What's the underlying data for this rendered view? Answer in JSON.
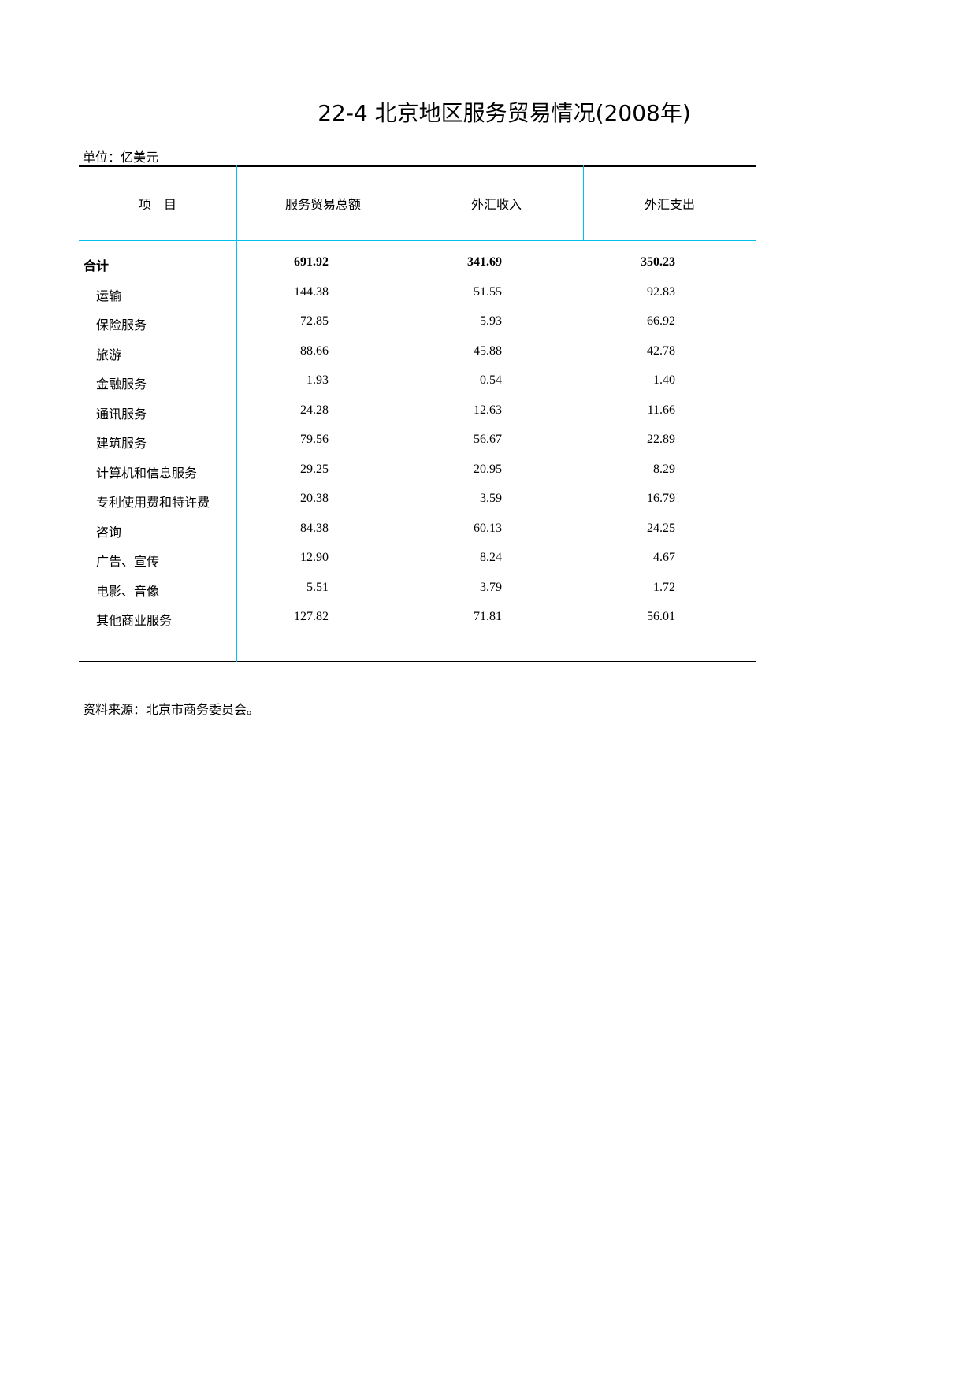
{
  "title": "22-4  北京地区服务贸易情况(2008年)",
  "unit": "单位：亿美元",
  "headers": [
    "项　目",
    "服务贸易总额",
    "外汇收入",
    "外汇支出"
  ],
  "colors": {
    "grid_accent": "#00c0f0"
  },
  "total": {
    "label": "合计",
    "values": [
      "691.92",
      "341.69",
      "350.23"
    ]
  },
  "rows": [
    {
      "label": "运输",
      "values": [
        "144.38",
        "51.55",
        "92.83"
      ]
    },
    {
      "label": "保险服务",
      "values": [
        "72.85",
        "5.93",
        "66.92"
      ]
    },
    {
      "label": "旅游",
      "values": [
        "88.66",
        "45.88",
        "42.78"
      ]
    },
    {
      "label": "金融服务",
      "values": [
        "1.93",
        "0.54",
        "1.40"
      ]
    },
    {
      "label": "通讯服务",
      "values": [
        "24.28",
        "12.63",
        "11.66"
      ]
    },
    {
      "label": "建筑服务",
      "values": [
        "79.56",
        "56.67",
        "22.89"
      ]
    },
    {
      "label": "计算机和信息服务",
      "values": [
        "29.25",
        "20.95",
        "8.29"
      ]
    },
    {
      "label": "专利使用费和特许费",
      "values": [
        "20.38",
        "3.59",
        "16.79"
      ]
    },
    {
      "label": "咨询",
      "values": [
        "84.38",
        "60.13",
        "24.25"
      ]
    },
    {
      "label": "广告、宣传",
      "values": [
        "12.90",
        "8.24",
        "4.67"
      ]
    },
    {
      "label": "电影、音像",
      "values": [
        "5.51",
        "3.79",
        "1.72"
      ]
    },
    {
      "label": "其他商业服务",
      "values": [
        "127.82",
        "71.81",
        "56.01"
      ]
    }
  ],
  "source": "资料来源：北京市商务委员会。"
}
